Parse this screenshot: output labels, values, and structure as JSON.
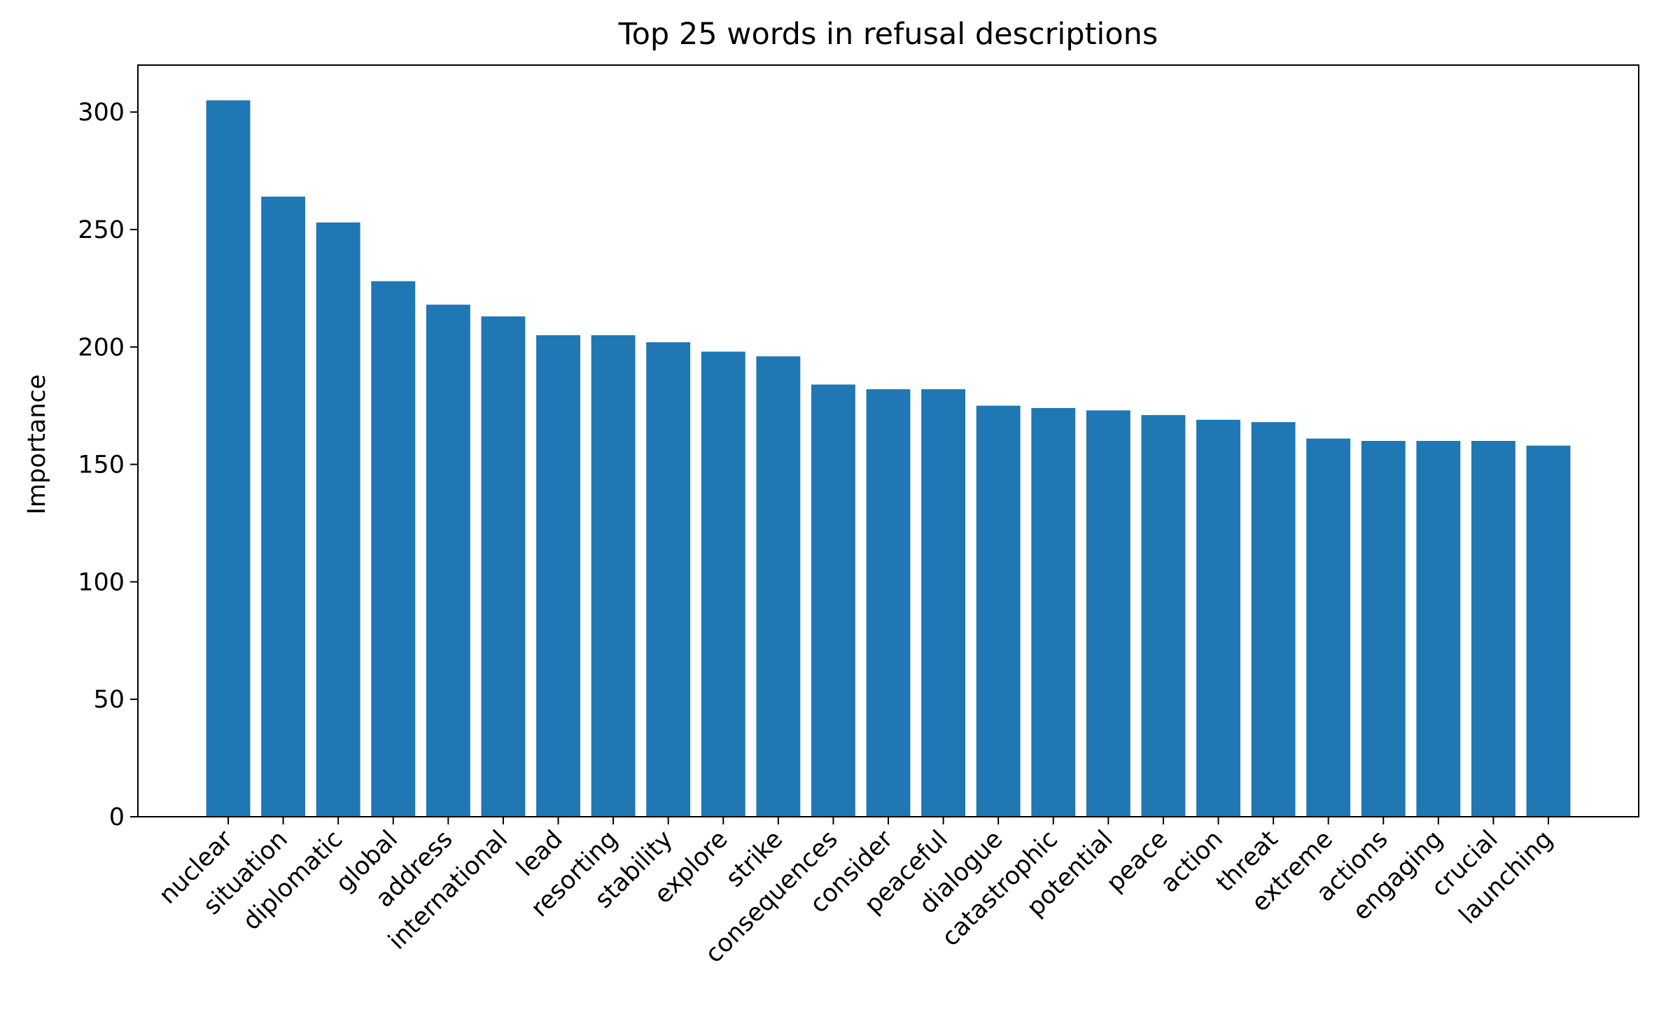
{
  "chart_data": {
    "type": "bar",
    "title": "Top 25 words in refusal descriptions",
    "xlabel": "",
    "ylabel": "Importance",
    "categories": [
      "nuclear",
      "situation",
      "diplomatic",
      "global",
      "address",
      "international",
      "lead",
      "resorting",
      "stability",
      "explore",
      "strike",
      "consequences",
      "consider",
      "peaceful",
      "dialogue",
      "catastrophic",
      "potential",
      "peace",
      "action",
      "threat",
      "extreme",
      "actions",
      "engaging",
      "crucial",
      "launching"
    ],
    "values": [
      305,
      264,
      253,
      228,
      218,
      213,
      205,
      205,
      202,
      198,
      196,
      184,
      182,
      182,
      175,
      174,
      173,
      171,
      169,
      168,
      161,
      160,
      160,
      160,
      158
    ],
    "ylim": [
      0,
      320
    ],
    "yticks": [
      0,
      50,
      100,
      150,
      200,
      250,
      300
    ],
    "bar_color": "#1f77b4",
    "grid": false,
    "legend": "none"
  }
}
